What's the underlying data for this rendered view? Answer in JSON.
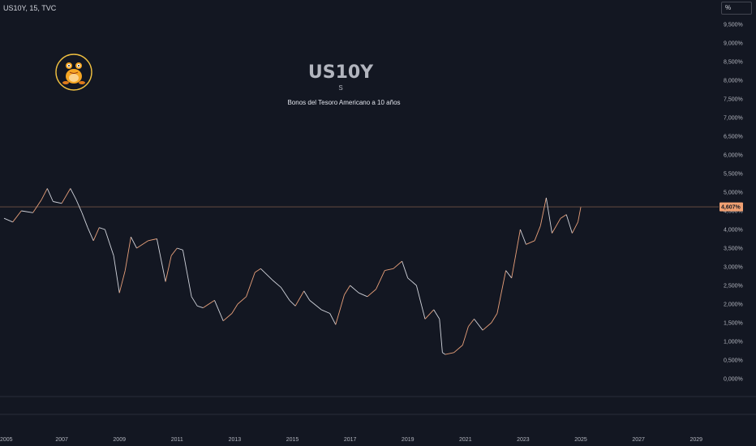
{
  "header": {
    "symbol_label": "US10Y, 15, TVC"
  },
  "scale_button": {
    "label": "%"
  },
  "logo": {
    "name": "frog-icon"
  },
  "chart_data": {
    "type": "line",
    "title": "US10Y",
    "subtitle": "S",
    "annotation": "Bonos del Tesoro Americano a 10 años",
    "ylim": [
      0,
      9.5
    ],
    "y_ticks": [
      {
        "value": 9.5,
        "label": "9,500%"
      },
      {
        "value": 9.0,
        "label": "9,000%"
      },
      {
        "value": 8.5,
        "label": "8,500%"
      },
      {
        "value": 8.0,
        "label": "8,000%"
      },
      {
        "value": 7.5,
        "label": "7,500%"
      },
      {
        "value": 7.0,
        "label": "7,000%"
      },
      {
        "value": 6.5,
        "label": "6,500%"
      },
      {
        "value": 6.0,
        "label": "6,000%"
      },
      {
        "value": 5.5,
        "label": "5,500%"
      },
      {
        "value": 5.0,
        "label": "5,000%"
      },
      {
        "value": 4.5,
        "label": "4,500%"
      },
      {
        "value": 4.0,
        "label": "4,000%"
      },
      {
        "value": 3.5,
        "label": "3,500%"
      },
      {
        "value": 3.0,
        "label": "3,000%"
      },
      {
        "value": 2.5,
        "label": "2,500%"
      },
      {
        "value": 2.0,
        "label": "2,000%"
      },
      {
        "value": 1.5,
        "label": "1,500%"
      },
      {
        "value": 1.0,
        "label": "1,000%"
      },
      {
        "value": 0.5,
        "label": "0,500%"
      },
      {
        "value": 0.0,
        "label": "0,000%"
      }
    ],
    "x_ticks": [
      "2005",
      "2007",
      "2009",
      "2011",
      "2013",
      "2015",
      "2017",
      "2019",
      "2021",
      "2023",
      "2025",
      "2027",
      "2029"
    ],
    "xlim": [
      2005,
      2030.4
    ],
    "current_value": 4.607,
    "current_label": "4,607%",
    "colors": {
      "up": "#e8a07a",
      "down": "#d1d4dc",
      "price_label": "#f0a072"
    },
    "series": [
      {
        "x": [
          2005.0,
          2005.3,
          2005.6,
          2006.0,
          2006.3,
          2006.5,
          2006.7,
          2007.0,
          2007.3,
          2007.5,
          2007.7,
          2007.9,
          2008.1,
          2008.3,
          2008.5,
          2008.8,
          2009.0,
          2009.2,
          2009.4,
          2009.6,
          2010.0,
          2010.3,
          2010.6,
          2010.8,
          2011.0,
          2011.2,
          2011.5,
          2011.7,
          2011.9,
          2012.3,
          2012.6,
          2012.9,
          2013.1,
          2013.4,
          2013.7,
          2013.9,
          2014.3,
          2014.6,
          2014.9,
          2015.1,
          2015.4,
          2015.6,
          2016.0,
          2016.3,
          2016.5,
          2016.8,
          2017.0,
          2017.3,
          2017.6,
          2017.9,
          2018.2,
          2018.5,
          2018.8,
          2019.0,
          2019.3,
          2019.6,
          2019.9,
          2020.1,
          2020.2,
          2020.3,
          2020.6,
          2020.9,
          2021.1,
          2021.3,
          2021.6,
          2021.9,
          2022.1,
          2022.4,
          2022.6,
          2022.9,
          2023.1,
          2023.4,
          2023.6,
          2023.8,
          2024.0,
          2024.3,
          2024.5,
          2024.7,
          2024.9,
          2025.0
        ],
        "y": [
          4.3,
          4.2,
          4.5,
          4.45,
          4.8,
          5.1,
          4.75,
          4.7,
          5.1,
          4.8,
          4.45,
          4.05,
          3.7,
          4.05,
          4.0,
          3.3,
          2.3,
          2.9,
          3.8,
          3.5,
          3.7,
          3.75,
          2.6,
          3.3,
          3.5,
          3.45,
          2.2,
          1.95,
          1.9,
          2.1,
          1.55,
          1.75,
          2.0,
          2.2,
          2.85,
          2.95,
          2.65,
          2.45,
          2.1,
          1.95,
          2.35,
          2.1,
          1.85,
          1.75,
          1.45,
          2.25,
          2.5,
          2.3,
          2.2,
          2.4,
          2.9,
          2.95,
          3.15,
          2.7,
          2.5,
          1.6,
          1.85,
          1.6,
          0.7,
          0.65,
          0.7,
          0.9,
          1.4,
          1.6,
          1.3,
          1.5,
          1.75,
          2.9,
          2.7,
          4.0,
          3.6,
          3.7,
          4.1,
          4.85,
          3.9,
          4.3,
          4.4,
          3.9,
          4.2,
          4.6
        ]
      }
    ]
  }
}
